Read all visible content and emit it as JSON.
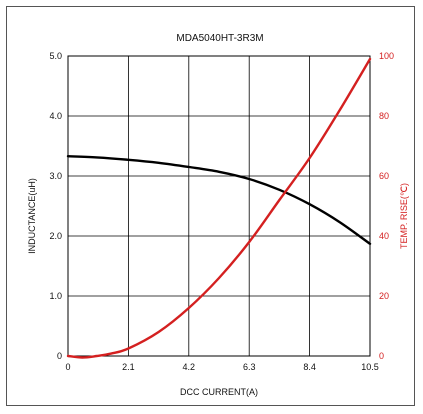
{
  "chart_data": {
    "type": "line",
    "title": "MDA5040HT-3R3M",
    "xlabel": "DCC CURRENT(A)",
    "ylabel_left": "INDUCTANCE(uH)",
    "ylabel_right": "TEMP. RISE(℃)",
    "xlim": [
      0,
      10.5
    ],
    "ylim_left": [
      0,
      5.0
    ],
    "ylim_right": [
      0,
      100
    ],
    "x_ticks": [
      "0",
      "2.1",
      "4.2",
      "6.3",
      "8.4",
      "10.5"
    ],
    "y_left_ticks": [
      "0",
      "1.0",
      "2.0",
      "3.0",
      "4.0",
      "5.0"
    ],
    "y_right_ticks": [
      "0",
      "20",
      "40",
      "60",
      "80",
      "100"
    ],
    "grid": true,
    "colors": {
      "inductance": "#000000",
      "temp_rise": "#d42020",
      "right_axis": "#d42020",
      "grid": "#000000"
    },
    "series": [
      {
        "axis": "left",
        "x": [
          0,
          1.0,
          2.1,
          3.15,
          4.2,
          5.25,
          6.3,
          7.35,
          8.4,
          9.45,
          10.5
        ],
        "values": [
          3.33,
          3.31,
          3.27,
          3.22,
          3.15,
          3.07,
          2.95,
          2.77,
          2.53,
          2.23,
          1.87
        ]
      },
      {
        "axis": "right",
        "x": [
          0,
          0.5,
          1.0,
          1.5,
          2.1,
          3.15,
          4.2,
          5.25,
          6.3,
          7.35,
          8.4,
          9.45,
          10.5
        ],
        "values": [
          0,
          -0.5,
          0,
          0.8,
          2.5,
          8,
          16,
          26,
          38,
          52,
          66,
          82,
          99
        ]
      }
    ]
  }
}
